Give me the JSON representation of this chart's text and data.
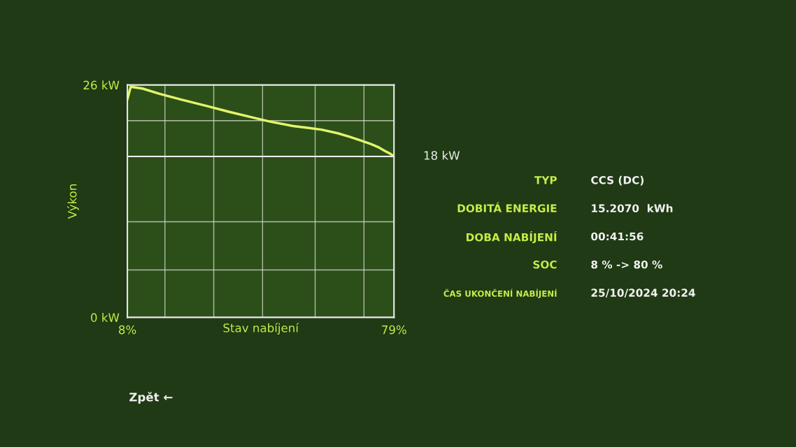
{
  "chart_data": {
    "type": "line",
    "xlabel": "Stav nabíjení",
    "ylabel": "Výkon",
    "x": [
      8,
      8.9,
      12,
      16.6,
      22,
      29.6,
      35,
      40.9,
      46,
      52.2,
      56,
      59.7,
      64,
      67.2,
      70,
      72.8,
      75,
      76.6,
      78,
      79
    ],
    "series": [
      {
        "color": "#e2f56a",
        "values": [
          24.4,
          25.8,
          25.6,
          25.0,
          24.4,
          23.6,
          23.0,
          22.4,
          21.9,
          21.4,
          21.2,
          21.0,
          20.6,
          20.2,
          19.8,
          19.4,
          19.0,
          18.6,
          18.3,
          18.0
        ]
      }
    ],
    "xlim": [
      8,
      79
    ],
    "ylim": [
      0,
      26
    ],
    "xticks": [
      {
        "value": 8,
        "label": "8%"
      },
      {
        "value": 18,
        "label": null
      },
      {
        "value": 31,
        "label": null
      },
      {
        "value": 44,
        "label": null
      },
      {
        "value": 58,
        "label": null
      },
      {
        "value": 71,
        "label": null
      },
      {
        "value": 79,
        "label": "79%"
      }
    ],
    "yticks": [
      {
        "value": 0,
        "label": "0 kW"
      },
      {
        "value": 5.3,
        "label": null
      },
      {
        "value": 10.7,
        "label": null
      },
      {
        "value": 22,
        "label": null
      },
      {
        "value": 26,
        "label": "26 kW"
      }
    ],
    "ref_lines": [
      {
        "axis": "y",
        "value": 18,
        "label": "18 kW",
        "color": "#f0f0f0"
      }
    ],
    "grid": true,
    "marker": "none",
    "line_style": "solid",
    "annotations": [
      "TYP",
      "CCS (DC)",
      "DOBITÁ ENERGIE",
      "15.2070  kWh",
      "DOBA NABÍJENÍ",
      "00:41:56",
      "SOC",
      "8 % -> 80 %",
      "ČAS UKONČENÍ NABÍJENÍ",
      "25/10/2024 20:24",
      "Zpět ←"
    ]
  }
}
